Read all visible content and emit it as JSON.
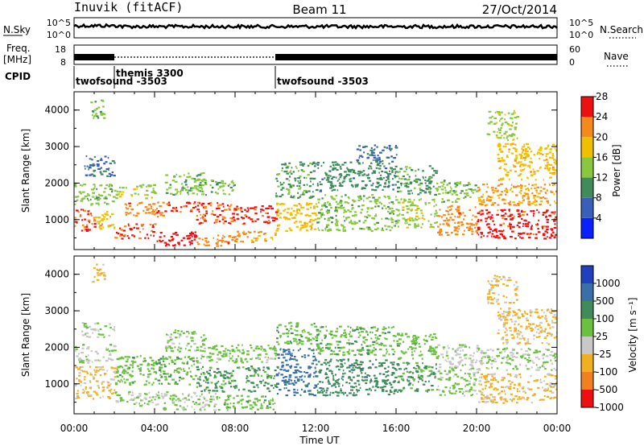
{
  "header": {
    "station": "Inuvik (fitACF)",
    "beam": "Beam 11",
    "date": "27/Oct/2014"
  },
  "side_labels": {
    "nsky": "N.Sky",
    "nsearch": "N.Search",
    "freq_top": "Freq.",
    "freq_unit": "[MHz]",
    "nave": "Nave",
    "cpid": "CPID",
    "nsky_scale": [
      "10^5",
      "10^0"
    ],
    "nsearch_scale": [
      "10^5",
      "10^0"
    ],
    "freq_scale": [
      "18",
      "8"
    ],
    "nave_scale": [
      "60",
      "0"
    ]
  },
  "cpid_segments": [
    {
      "label": "twofsound -3503",
      "start_hour": 0.0
    },
    {
      "label": "themis 3300",
      "start_hour": 2.0
    },
    {
      "label": "twofsound -3503",
      "start_hour": 10.0
    }
  ],
  "axes": {
    "xlabel": "Time UT",
    "ylabel": "Slant Range [km]",
    "x_ticks": [
      "00:00",
      "04:00",
      "08:00",
      "12:00",
      "16:00",
      "20:00",
      "00:00"
    ],
    "y_ticks": [
      "1000",
      "2000",
      "3000",
      "4000"
    ]
  },
  "colorbars": {
    "power": {
      "label": "Power [dB]",
      "ticks": [
        "4",
        "8",
        "12",
        "16",
        "20",
        "24",
        "28"
      ],
      "colors": [
        "#0a20ff",
        "#3a5fb8",
        "#3f8c5a",
        "#88c840",
        "#f0c000",
        "#f58a1c",
        "#ee1010"
      ]
    },
    "velocity": {
      "label": "Velocity [m s⁻¹]",
      "ticks": [
        "1000",
        "500",
        "100",
        "25",
        "-25",
        "-100",
        "-500",
        "-1000"
      ],
      "colors": [
        "#2040c0",
        "#3a70a8",
        "#3f8c5a",
        "#6cc040",
        "#c8c8c8",
        "#f0b020",
        "#f28020",
        "#ee1010"
      ]
    }
  },
  "chart_data": [
    {
      "type": "heatmap",
      "name_panel": "power",
      "x_unit": "hours UT",
      "xlim": [
        0,
        24
      ],
      "ylabel": "Slant Range [km]",
      "ylim": [
        180,
        4500
      ],
      "colorbar_label": "Power [dB]",
      "colorbar_range": [
        0,
        30
      ],
      "regions": [
        {
          "t0": 0.0,
          "t1": 1.0,
          "r0": 700,
          "r1": 1300,
          "value": 26
        },
        {
          "t0": 1.0,
          "t1": 2.0,
          "r0": 750,
          "r1": 1250,
          "value": 20
        },
        {
          "t0": 0.0,
          "t1": 2.0,
          "r0": 1400,
          "r1": 2000,
          "value": 14
        },
        {
          "t0": 0.5,
          "t1": 2.0,
          "r0": 2200,
          "r1": 2800,
          "value": 8
        },
        {
          "t0": 0.8,
          "t1": 1.5,
          "r0": 3800,
          "r1": 4300,
          "value": 14
        },
        {
          "t0": 2.0,
          "t1": 4.0,
          "r0": 500,
          "r1": 900,
          "value": 26
        },
        {
          "t0": 2.5,
          "t1": 4.5,
          "r0": 1100,
          "r1": 1500,
          "value": 24
        },
        {
          "t0": 2.0,
          "t1": 4.0,
          "r0": 1600,
          "r1": 2000,
          "value": 16
        },
        {
          "t0": 4.0,
          "t1": 6.0,
          "r0": 1200,
          "r1": 1500,
          "value": 26
        },
        {
          "t0": 4.0,
          "t1": 6.0,
          "r0": 300,
          "r1": 700,
          "value": 28
        },
        {
          "t0": 4.5,
          "t1": 6.5,
          "r0": 1700,
          "r1": 2300,
          "value": 14
        },
        {
          "t0": 6.0,
          "t1": 8.0,
          "r0": 900,
          "r1": 1500,
          "value": 26
        },
        {
          "t0": 6.0,
          "t1": 8.0,
          "r0": 300,
          "r1": 600,
          "value": 24
        },
        {
          "t0": 6.0,
          "t1": 8.0,
          "r0": 1700,
          "r1": 2100,
          "value": 14
        },
        {
          "t0": 8.0,
          "t1": 10.0,
          "r0": 900,
          "r1": 1400,
          "value": 27
        },
        {
          "t0": 8.0,
          "t1": 10.0,
          "r0": 400,
          "r1": 700,
          "value": 22
        },
        {
          "t0": 10.0,
          "t1": 12.0,
          "r0": 700,
          "r1": 1500,
          "value": 20
        },
        {
          "t0": 10.0,
          "t1": 12.0,
          "r0": 1600,
          "r1": 2600,
          "value": 12
        },
        {
          "t0": 12.0,
          "t1": 16.0,
          "r0": 700,
          "r1": 1700,
          "value": 14
        },
        {
          "t0": 12.0,
          "t1": 16.0,
          "r0": 1800,
          "r1": 2600,
          "value": 10
        },
        {
          "t0": 14.0,
          "t1": 16.0,
          "r0": 2600,
          "r1": 3100,
          "value": 8
        },
        {
          "t0": 16.0,
          "t1": 18.0,
          "r0": 800,
          "r1": 1600,
          "value": 16
        },
        {
          "t0": 16.0,
          "t1": 18.0,
          "r0": 1700,
          "r1": 2500,
          "value": 12
        },
        {
          "t0": 18.0,
          "t1": 20.0,
          "r0": 600,
          "r1": 1400,
          "value": 24
        },
        {
          "t0": 18.0,
          "t1": 20.0,
          "r0": 1500,
          "r1": 2100,
          "value": 14
        },
        {
          "t0": 20.0,
          "t1": 24.0,
          "r0": 500,
          "r1": 1300,
          "value": 27
        },
        {
          "t0": 20.0,
          "t1": 24.0,
          "r0": 1400,
          "r1": 2000,
          "value": 22
        },
        {
          "t0": 21.0,
          "t1": 24.0,
          "r0": 2100,
          "r1": 3100,
          "value": 20
        },
        {
          "t0": 20.5,
          "t1": 22.0,
          "r0": 3200,
          "r1": 4000,
          "value": 16
        }
      ]
    },
    {
      "type": "heatmap",
      "name_panel": "velocity",
      "x_unit": "hours UT",
      "xlim": [
        0,
        24
      ],
      "ylabel": "Slant Range [km]",
      "ylim": [
        180,
        4500
      ],
      "colorbar_label": "Velocity [m s⁻¹]",
      "colorbar_range": [
        -1000,
        1000
      ],
      "regions": [
        {
          "t0": 0.0,
          "t1": 2.0,
          "r0": 600,
          "r1": 1500,
          "value": -300
        },
        {
          "t0": 0.0,
          "t1": 2.0,
          "r0": 1600,
          "r1": 2100,
          "value": -60
        },
        {
          "t0": 0.3,
          "t1": 2.0,
          "r0": 2300,
          "r1": 2700,
          "value": 0
        },
        {
          "t0": 0.8,
          "t1": 1.5,
          "r0": 3800,
          "r1": 4300,
          "value": -300
        },
        {
          "t0": 2.0,
          "t1": 4.0,
          "r0": 1000,
          "r1": 1800,
          "value": 150
        },
        {
          "t0": 2.0,
          "t1": 4.0,
          "r0": 400,
          "r1": 800,
          "value": 0
        },
        {
          "t0": 4.0,
          "t1": 7.0,
          "r0": 300,
          "r1": 800,
          "value": 0
        },
        {
          "t0": 4.0,
          "t1": 6.0,
          "r0": 1000,
          "r1": 1800,
          "value": 200
        },
        {
          "t0": 4.5,
          "t1": 6.5,
          "r0": 1900,
          "r1": 2500,
          "value": 60
        },
        {
          "t0": 6.0,
          "t1": 10.0,
          "r0": 800,
          "r1": 1500,
          "value": 300
        },
        {
          "t0": 7.0,
          "t1": 10.0,
          "r0": 300,
          "r1": 700,
          "value": 150
        },
        {
          "t0": 6.0,
          "t1": 10.0,
          "r0": 1600,
          "r1": 2100,
          "value": 80
        },
        {
          "t0": 10.0,
          "t1": 12.0,
          "r0": 700,
          "r1": 2000,
          "value": 600
        },
        {
          "t0": 10.0,
          "t1": 12.0,
          "r0": 2100,
          "r1": 2700,
          "value": 200
        },
        {
          "t0": 12.0,
          "t1": 16.0,
          "r0": 700,
          "r1": 1700,
          "value": 400
        },
        {
          "t0": 12.0,
          "t1": 16.0,
          "r0": 1800,
          "r1": 2600,
          "value": 200
        },
        {
          "t0": 16.0,
          "t1": 18.0,
          "r0": 800,
          "r1": 1600,
          "value": 300
        },
        {
          "t0": 16.0,
          "t1": 18.0,
          "r0": 1700,
          "r1": 2400,
          "value": 150
        },
        {
          "t0": 18.0,
          "t1": 20.0,
          "r0": 700,
          "r1": 1500,
          "value": 60
        },
        {
          "t0": 18.0,
          "t1": 20.0,
          "r0": 1500,
          "r1": 2100,
          "value": -60
        },
        {
          "t0": 20.0,
          "t1": 24.0,
          "r0": 500,
          "r1": 1300,
          "value": -300
        },
        {
          "t0": 20.0,
          "t1": 24.0,
          "r0": 1400,
          "r1": 2000,
          "value": 0
        },
        {
          "t0": 21.0,
          "t1": 24.0,
          "r0": 2100,
          "r1": 3100,
          "value": -300
        },
        {
          "t0": 20.5,
          "t1": 22.0,
          "r0": 3200,
          "r1": 4000,
          "value": -300
        }
      ]
    }
  ]
}
